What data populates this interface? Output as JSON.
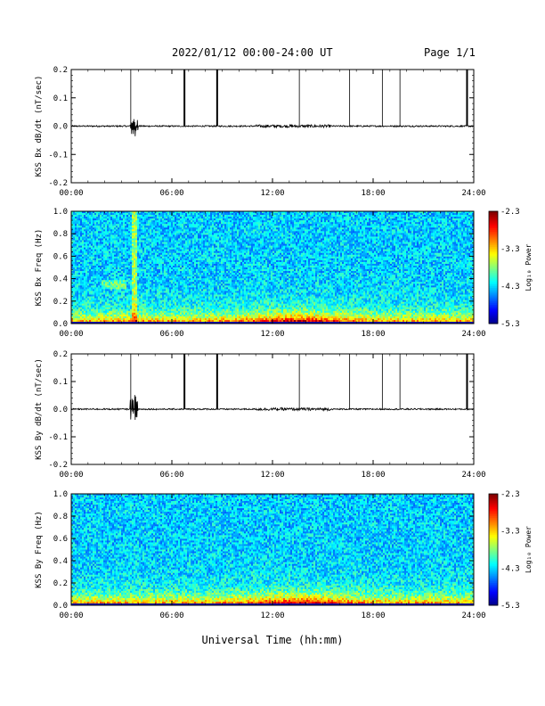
{
  "header": {
    "title": "2022/01/12  00:00-24:00 UT",
    "page": "Page 1/1"
  },
  "footer": {
    "xlabel": "Universal Time (hh:mm)"
  },
  "chart_data": [
    {
      "type": "line",
      "id": "bx-dbdt",
      "ylabel": "KSS Bx dB/dt (nT/sec)",
      "xlim": [
        0,
        24
      ],
      "ylim": [
        -0.2,
        0.2
      ],
      "y_ticks": [
        "0.2",
        "0.1",
        "0.0",
        "-0.1",
        "-0.2"
      ],
      "x_ticks": [
        "00:00",
        "06:00",
        "12:00",
        "18:00",
        "24:00"
      ],
      "baseline": 0.0,
      "spikes_hours": [
        3.55,
        6.75,
        8.7,
        13.6,
        16.6,
        18.55,
        19.6,
        23.6
      ],
      "bold_spikes_hours": [
        6.75,
        8.7,
        23.6
      ],
      "disturbance": {
        "hour": 3.75,
        "min": -0.04,
        "max": 0.03
      }
    },
    {
      "type": "heatmap",
      "id": "bx-spectrogram",
      "ylabel": "KSS Bx Freq (Hz)",
      "xlim": [
        0,
        24
      ],
      "ylim": [
        0,
        1
      ],
      "y_ticks": [
        "1.0",
        "0.8",
        "0.6",
        "0.4",
        "0.2",
        "0.0"
      ],
      "x_ticks": [
        "00:00",
        "06:00",
        "12:00",
        "18:00",
        "24:00"
      ],
      "colorbar": {
        "label": "Log₁₀ Power",
        "ticks": [
          "-2.3",
          "-3.3",
          "-4.3",
          "-5.3"
        ],
        "range": [
          -5.3,
          -2.3
        ]
      }
    },
    {
      "type": "line",
      "id": "by-dbdt",
      "ylabel": "KSS By dB/dt (nT/sec)",
      "xlim": [
        0,
        24
      ],
      "ylim": [
        -0.2,
        0.2
      ],
      "y_ticks": [
        "0.2",
        "0.1",
        "0.0",
        "-0.1",
        "-0.2"
      ],
      "x_ticks": [
        "00:00",
        "06:00",
        "12:00",
        "18:00",
        "24:00"
      ],
      "baseline": 0.0,
      "spikes_hours": [
        3.55,
        6.75,
        8.7,
        13.6,
        16.6,
        18.55,
        19.6,
        23.6
      ],
      "bold_spikes_hours": [
        6.75,
        8.7,
        23.6
      ],
      "disturbance": {
        "hour": 3.75,
        "min": -0.04,
        "max": 0.06
      }
    },
    {
      "type": "heatmap",
      "id": "by-spectrogram",
      "ylabel": "KSS By Freq (Hz)",
      "xlim": [
        0,
        24
      ],
      "ylim": [
        0,
        1
      ],
      "y_ticks": [
        "1.0",
        "0.8",
        "0.6",
        "0.4",
        "0.2",
        "0.0"
      ],
      "x_ticks": [
        "00:00",
        "06:00",
        "12:00",
        "18:00",
        "24:00"
      ],
      "colorbar": {
        "label": "Log₁₀ Power",
        "ticks": [
          "-2.3",
          "-3.3",
          "-4.3",
          "-5.3"
        ],
        "range": [
          -5.3,
          -2.3
        ]
      }
    }
  ]
}
